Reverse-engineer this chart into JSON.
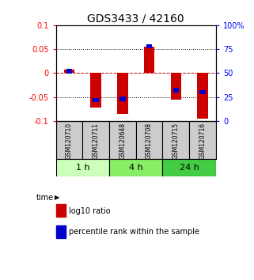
{
  "title": "GDS3433 / 42160",
  "samples": [
    "GSM120710",
    "GSM120711",
    "GSM120648",
    "GSM120708",
    "GSM120715",
    "GSM120716"
  ],
  "groups": [
    {
      "label": "1 h",
      "indices": [
        0,
        1
      ]
    },
    {
      "label": "4 h",
      "indices": [
        2,
        3
      ]
    },
    {
      "label": "24 h",
      "indices": [
        4,
        5
      ]
    }
  ],
  "log10_ratio": [
    0.008,
    -0.072,
    -0.085,
    0.055,
    -0.055,
    -0.095
  ],
  "percentile_rank": [
    52,
    22,
    23,
    78,
    32,
    30
  ],
  "ylim_left": [
    -0.1,
    0.1
  ],
  "ylim_right": [
    0,
    100
  ],
  "bar_color": "#cc0000",
  "marker_color": "#0000cc",
  "title_fontsize": 10,
  "group_colors": [
    "#ccffbb",
    "#88ee66",
    "#44cc44"
  ],
  "sample_bg": "#cccccc"
}
